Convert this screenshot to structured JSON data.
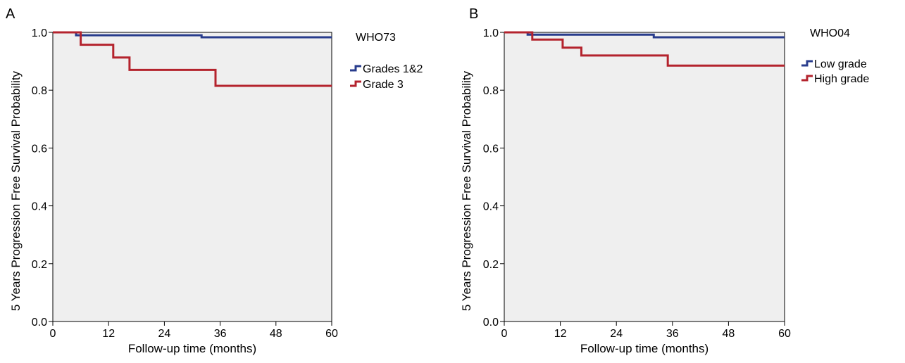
{
  "chart_data": [
    {
      "type": "line",
      "panel_label": "A",
      "legend_title": "WHO73",
      "legend_position": "right",
      "xlabel": "Follow-up time (months)",
      "ylabel": "5 Years Progression Free Survival Probability",
      "xlim": [
        0,
        60
      ],
      "ylim": [
        0,
        1
      ],
      "xticks": [
        0,
        12,
        24,
        36,
        48,
        60
      ],
      "yticks": [
        "0.0",
        "0.2",
        "0.4",
        "0.6",
        "0.8",
        "1.0"
      ],
      "grid": false,
      "series": [
        {
          "name": "Grades 1&2",
          "color": "#283c8c",
          "steps": [
            [
              0,
              1.0
            ],
            [
              5,
              0.99
            ],
            [
              32,
              0.983
            ],
            [
              60,
              0.983
            ]
          ]
        },
        {
          "name": "Grade 3",
          "color": "#b4232d",
          "steps": [
            [
              0,
              1.0
            ],
            [
              6,
              0.957
            ],
            [
              13,
              0.913
            ],
            [
              16.5,
              0.87
            ],
            [
              35,
              0.815
            ],
            [
              60,
              0.815
            ]
          ]
        }
      ]
    },
    {
      "type": "line",
      "panel_label": "B",
      "legend_title": "WHO04",
      "legend_position": "right",
      "xlabel": "Follow-up time (months)",
      "ylabel": "5 Years Progression Free Survival Probability",
      "xlim": [
        0,
        60
      ],
      "ylim": [
        0,
        1
      ],
      "xticks": [
        0,
        12,
        24,
        36,
        48,
        60
      ],
      "yticks": [
        "0.0",
        "0.2",
        "0.4",
        "0.6",
        "0.8",
        "1.0"
      ],
      "grid": false,
      "series": [
        {
          "name": "Low grade",
          "color": "#283c8c",
          "steps": [
            [
              0,
              1.0
            ],
            [
              5,
              0.992
            ],
            [
              32,
              0.983
            ],
            [
              60,
              0.983
            ]
          ]
        },
        {
          "name": "High grade",
          "color": "#b4232d",
          "steps": [
            [
              0,
              1.0
            ],
            [
              6,
              0.975
            ],
            [
              12.5,
              0.947
            ],
            [
              16.5,
              0.92
            ],
            [
              35,
              0.885
            ],
            [
              60,
              0.885
            ]
          ]
        }
      ]
    }
  ]
}
